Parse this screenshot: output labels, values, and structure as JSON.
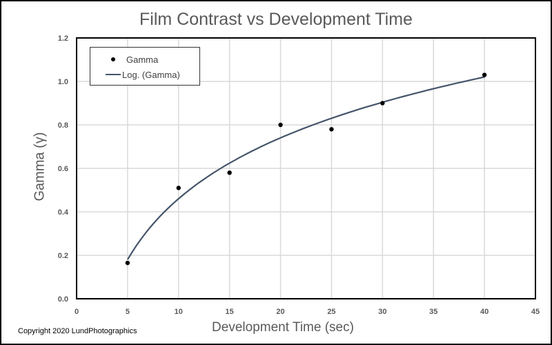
{
  "chart_data": {
    "type": "scatter",
    "title": "Film Contrast vs Development Time",
    "xlabel": "Development Time (sec)",
    "ylabel": "Gamma (γ)",
    "xlim": [
      0,
      45
    ],
    "ylim": [
      0,
      1.2
    ],
    "x_ticks": [
      "0",
      "5",
      "10",
      "15",
      "20",
      "25",
      "30",
      "35",
      "40",
      "45"
    ],
    "y_ticks": [
      "0.0",
      "0.2",
      "0.4",
      "0.6",
      "0.8",
      "1.0",
      "1.2"
    ],
    "grid": true,
    "legend_position": "upper-left",
    "series": [
      {
        "name": "Gamma",
        "kind": "scatter",
        "color": "#000000",
        "x": [
          5,
          10,
          15,
          20,
          25,
          30,
          40
        ],
        "y": [
          0.165,
          0.51,
          0.58,
          0.8,
          0.78,
          0.9,
          1.03
        ]
      },
      {
        "name": "Log. (Gamma)",
        "kind": "trendline-logarithmic",
        "color": "#44546a",
        "equation": {
          "a": 0.404,
          "b": -0.47
        },
        "x_range": [
          5,
          40
        ]
      }
    ]
  },
  "labels": {
    "title": "Film Contrast vs Development Time",
    "xlabel": "Development Time (sec)",
    "ylabel": "Gamma (γ)",
    "legend_scatter": "Gamma",
    "legend_trend": "Log. (Gamma)",
    "copyright": "Copyright 2020 LundPhotographics"
  }
}
